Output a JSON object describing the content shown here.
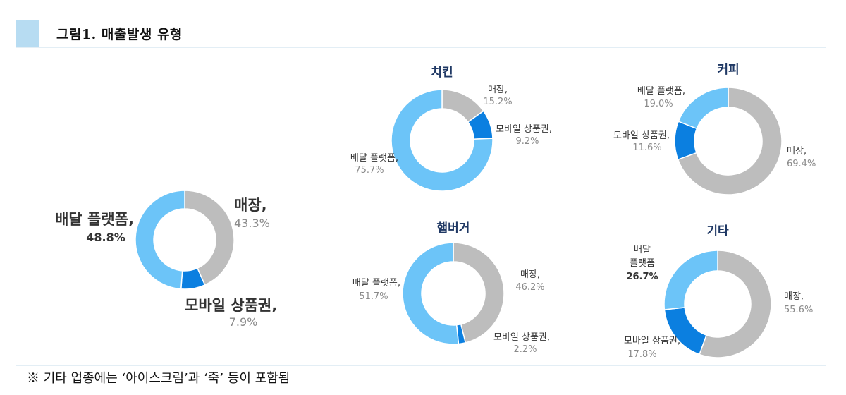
{
  "header": {
    "title": "그림1. 매출발생 유형"
  },
  "footnote": "※ 기타 업종에는 ‘아이스크림’과 ‘죽’ 등이 포함됨",
  "colors": {
    "store": "#bdbdbd",
    "mobile": "#0b7fe0",
    "delivery": "#6cc4f8"
  },
  "chart_data": [
    {
      "type": "pie",
      "title": "",
      "slices": [
        {
          "label": "매장,",
          "value": 43.3,
          "value_label": "43.3%"
        },
        {
          "label": "모바일 상품권,",
          "value": 7.9,
          "value_label": "7.9%"
        },
        {
          "label": "배달 플랫폼,",
          "value": 48.8,
          "value_label": "48.8%"
        }
      ]
    },
    {
      "type": "pie",
      "title": "치킨",
      "slices": [
        {
          "label": "매장,",
          "value": 15.2,
          "value_label": "15.2%"
        },
        {
          "label": "모바일 상품권,",
          "value": 9.2,
          "value_label": "9.2%"
        },
        {
          "label": "배달 플랫폼,",
          "value": 75.7,
          "value_label": "75.7%"
        }
      ]
    },
    {
      "type": "pie",
      "title": "커피",
      "slices": [
        {
          "label": "매장,",
          "value": 69.4,
          "value_label": "69.4%"
        },
        {
          "label": "모바일 상품권,",
          "value": 11.6,
          "value_label": "11.6%"
        },
        {
          "label": "배달 플랫폼,",
          "value": 19.0,
          "value_label": "19.0%"
        }
      ]
    },
    {
      "type": "pie",
      "title": "햄버거",
      "slices": [
        {
          "label": "매장,",
          "value": 46.2,
          "value_label": "46.2%"
        },
        {
          "label": "모바일 상품권,",
          "value": 2.2,
          "value_label": "2.2%"
        },
        {
          "label": "배달 플랫폼,",
          "value": 51.7,
          "value_label": "51.7%"
        }
      ]
    },
    {
      "type": "pie",
      "title": "기타",
      "slices": [
        {
          "label": "매장,",
          "value": 55.6,
          "value_label": "55.6%"
        },
        {
          "label": "모바일 상품권,",
          "value": 17.8,
          "value_label": "17.8%"
        },
        {
          "label": "배달 플랫폼",
          "value": 26.7,
          "value_label": "26.7%"
        }
      ]
    }
  ]
}
